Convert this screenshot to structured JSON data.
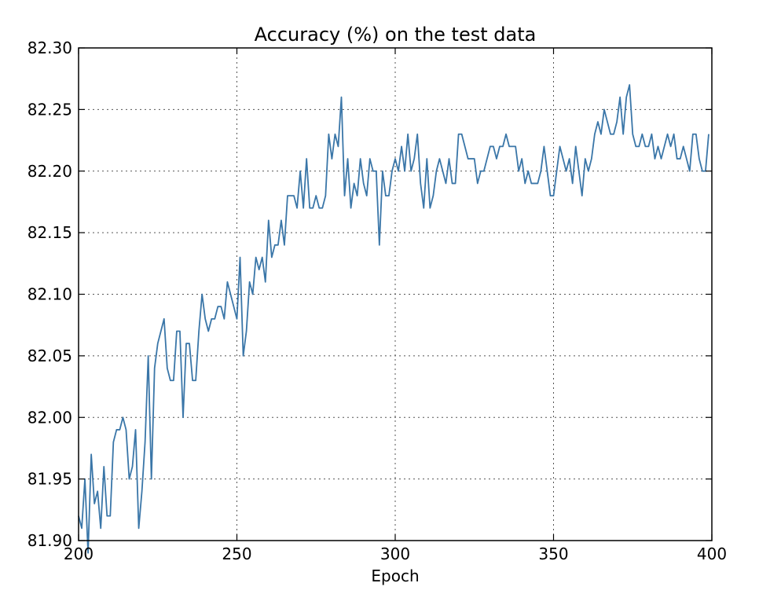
{
  "chart_data": {
    "type": "line",
    "title": "Accuracy (%) on the test data",
    "xlabel": "Epoch",
    "ylabel": "",
    "xlim": [
      200,
      400
    ],
    "ylim": [
      81.9,
      82.3
    ],
    "xticks": [
      200,
      250,
      300,
      350,
      400
    ],
    "xtick_labels": [
      "200",
      "250",
      "300",
      "350",
      "400"
    ],
    "yticks": [
      81.9,
      81.95,
      82.0,
      82.05,
      82.1,
      82.15,
      82.2,
      82.25,
      82.3
    ],
    "ytick_labels": [
      "81.90",
      "81.95",
      "82.00",
      "82.05",
      "82.10",
      "82.15",
      "82.20",
      "82.25",
      "82.30"
    ],
    "grid": true,
    "line_color": "#3a76a8",
    "series": [
      {
        "x_start": 200,
        "x_step": 1,
        "values": [
          81.92,
          81.91,
          81.95,
          81.89,
          81.97,
          81.93,
          81.94,
          81.91,
          81.96,
          81.92,
          81.92,
          81.98,
          81.99,
          81.99,
          82.0,
          81.99,
          81.95,
          81.96,
          81.99,
          81.91,
          81.94,
          81.98,
          82.05,
          81.95,
          82.04,
          82.06,
          82.07,
          82.08,
          82.04,
          82.03,
          82.03,
          82.07,
          82.07,
          82.0,
          82.06,
          82.06,
          82.03,
          82.03,
          82.07,
          82.1,
          82.08,
          82.07,
          82.08,
          82.08,
          82.09,
          82.09,
          82.08,
          82.11,
          82.1,
          82.09,
          82.08,
          82.13,
          82.05,
          82.07,
          82.11,
          82.1,
          82.13,
          82.12,
          82.13,
          82.11,
          82.16,
          82.13,
          82.14,
          82.14,
          82.16,
          82.14,
          82.18,
          82.18,
          82.18,
          82.17,
          82.2,
          82.17,
          82.21,
          82.17,
          82.17,
          82.18,
          82.17,
          82.17,
          82.18,
          82.23,
          82.21,
          82.23,
          82.22,
          82.26,
          82.18,
          82.21,
          82.17,
          82.19,
          82.18,
          82.21,
          82.19,
          82.18,
          82.21,
          82.2,
          82.2,
          82.14,
          82.2,
          82.18,
          82.18,
          82.2,
          82.21,
          82.2,
          82.22,
          82.2,
          82.23,
          82.2,
          82.21,
          82.23,
          82.19,
          82.17,
          82.21,
          82.17,
          82.18,
          82.2,
          82.21,
          82.2,
          82.19,
          82.21,
          82.19,
          82.19,
          82.23,
          82.23,
          82.22,
          82.21,
          82.21,
          82.21,
          82.19,
          82.2,
          82.2,
          82.21,
          82.22,
          82.22,
          82.21,
          82.22,
          82.22,
          82.23,
          82.22,
          82.22,
          82.22,
          82.2,
          82.21,
          82.19,
          82.2,
          82.19,
          82.19,
          82.19,
          82.2,
          82.22,
          82.2,
          82.18,
          82.18,
          82.2,
          82.22,
          82.21,
          82.2,
          82.21,
          82.19,
          82.22,
          82.2,
          82.18,
          82.21,
          82.2,
          82.21,
          82.23,
          82.24,
          82.23,
          82.25,
          82.24,
          82.23,
          82.23,
          82.24,
          82.26,
          82.23,
          82.26,
          82.27,
          82.23,
          82.22,
          82.22,
          82.23,
          82.22,
          82.22,
          82.23,
          82.21,
          82.22,
          82.21,
          82.22,
          82.23,
          82.22,
          82.23,
          82.21,
          82.21,
          82.22,
          82.21,
          82.2,
          82.23,
          82.23,
          82.21,
          82.2,
          82.2,
          82.23
        ]
      }
    ]
  }
}
